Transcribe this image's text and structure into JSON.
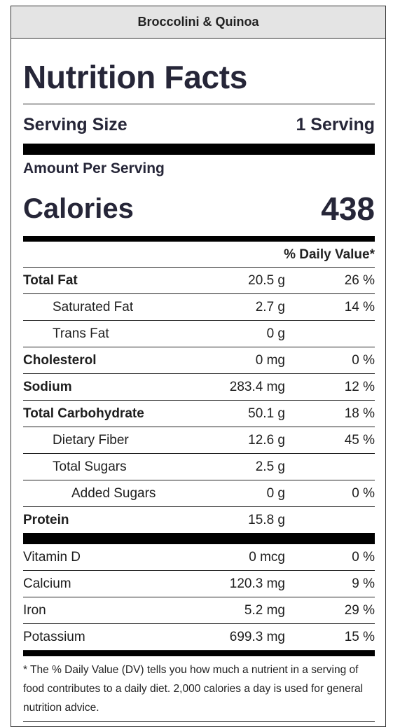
{
  "recipe_title": "Broccolini & Quinoa",
  "heading": "Nutrition Facts",
  "serving": {
    "label": "Serving Size",
    "value": "1 Serving"
  },
  "amount_per_serving": "Amount Per Serving",
  "calories": {
    "label": "Calories",
    "value": "438"
  },
  "daily_value_header": "% Daily Value*",
  "nutrients": [
    {
      "name": "Total Fat",
      "amount": "20.5 g",
      "dv": "26 %"
    },
    {
      "name": "Saturated Fat",
      "amount": "2.7 g",
      "dv": "14 %"
    },
    {
      "name": "Trans Fat",
      "amount": "0 g",
      "dv": ""
    },
    {
      "name": "Cholesterol",
      "amount": "0 mg",
      "dv": "0 %"
    },
    {
      "name": "Sodium",
      "amount": "283.4 mg",
      "dv": "12 %"
    },
    {
      "name": "Total Carbohydrate",
      "amount": "50.1 g",
      "dv": "18 %"
    },
    {
      "name": "Dietary Fiber",
      "amount": "12.6 g",
      "dv": "45 %"
    },
    {
      "name": "Total Sugars",
      "amount": "2.5 g",
      "dv": ""
    },
    {
      "name": "Added Sugars",
      "amount": "0 g",
      "dv": "0 %"
    },
    {
      "name": "Protein",
      "amount": "15.8 g",
      "dv": ""
    }
  ],
  "vitamins": [
    {
      "name": "Vitamin D",
      "amount": "0 mcg",
      "dv": "0 %"
    },
    {
      "name": "Calcium",
      "amount": "120.3 mg",
      "dv": "9 %"
    },
    {
      "name": "Iron",
      "amount": "5.2 mg",
      "dv": "29 %"
    },
    {
      "name": "Potassium",
      "amount": "699.3 mg",
      "dv": "15 %"
    }
  ],
  "footnote": "* The % Daily Value (DV) tells you how much a nutrient in a serving of food contributes to a daily diet. 2,000 calories a day is used for general nutrition advice."
}
